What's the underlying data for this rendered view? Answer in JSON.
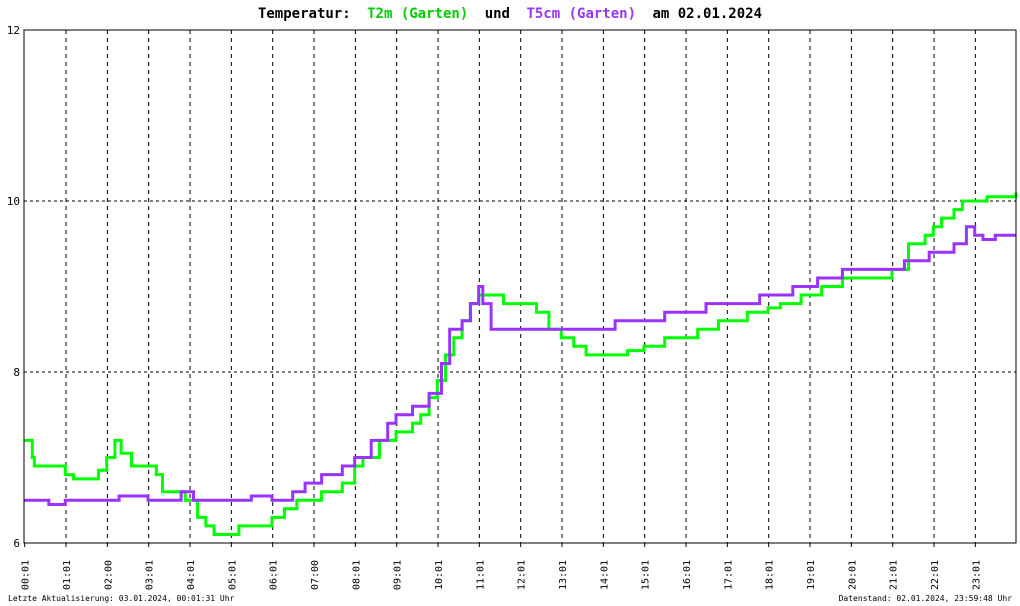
{
  "title": {
    "prefix": "Temperatur:",
    "series1": "T2m (Garten)",
    "und": "und",
    "series2": "T5cm (Garten)",
    "suffix": "am 02.01.2024"
  },
  "footer": {
    "left": "Letzte Aktualisierung: 03.01.2024, 00:01:31 Uhr",
    "right": "Datenstand: 02.01.2024, 23:59:48 Uhr"
  },
  "colors": {
    "t2m": "#00ff00",
    "t5cm": "#9933ff",
    "grid": "#000000",
    "border": "#000000"
  },
  "chart_data": {
    "type": "line",
    "x_unit": "hours",
    "xlim": [
      0,
      24
    ],
    "ylim": [
      6,
      12
    ],
    "grid": true,
    "y_ticks": [
      6,
      8,
      10,
      12
    ],
    "x_ticks": [
      {
        "t": 0.0167,
        "label": "00:01"
      },
      {
        "t": 1.0167,
        "label": "01:01"
      },
      {
        "t": 2.0167,
        "label": "02:00"
      },
      {
        "t": 3.0167,
        "label": "03:01"
      },
      {
        "t": 4.0167,
        "label": "04:01"
      },
      {
        "t": 5.0167,
        "label": "05:01"
      },
      {
        "t": 6.0167,
        "label": "06:01"
      },
      {
        "t": 7.0167,
        "label": "07:00"
      },
      {
        "t": 8.0167,
        "label": "08:01"
      },
      {
        "t": 9.0167,
        "label": "09:01"
      },
      {
        "t": 10.0167,
        "label": "10:01"
      },
      {
        "t": 11.0167,
        "label": "11:01"
      },
      {
        "t": 12.0167,
        "label": "12:01"
      },
      {
        "t": 13.0167,
        "label": "13:01"
      },
      {
        "t": 14.0167,
        "label": "14:01"
      },
      {
        "t": 15.0167,
        "label": "15:01"
      },
      {
        "t": 16.0167,
        "label": "16:01"
      },
      {
        "t": 17.0167,
        "label": "17:01"
      },
      {
        "t": 18.0167,
        "label": "18:01"
      },
      {
        "t": 19.0167,
        "label": "19:01"
      },
      {
        "t": 20.0167,
        "label": "20:01"
      },
      {
        "t": 21.0167,
        "label": "21:01"
      },
      {
        "t": 22.0167,
        "label": "22:01"
      },
      {
        "t": 23.0167,
        "label": "23:01"
      }
    ],
    "series": [
      {
        "name": "T2m (Garten)",
        "points": [
          [
            0.0,
            7.2
          ],
          [
            0.2,
            7.0
          ],
          [
            0.25,
            6.9
          ],
          [
            1.0,
            6.8
          ],
          [
            1.2,
            6.75
          ],
          [
            1.6,
            6.75
          ],
          [
            1.8,
            6.85
          ],
          [
            2.0,
            7.0
          ],
          [
            2.2,
            7.2
          ],
          [
            2.35,
            7.05
          ],
          [
            2.6,
            6.9
          ],
          [
            3.2,
            6.8
          ],
          [
            3.35,
            6.6
          ],
          [
            3.9,
            6.5
          ],
          [
            4.2,
            6.3
          ],
          [
            4.4,
            6.2
          ],
          [
            4.6,
            6.1
          ],
          [
            5.0,
            6.1
          ],
          [
            5.2,
            6.2
          ],
          [
            5.8,
            6.2
          ],
          [
            6.0,
            6.3
          ],
          [
            6.3,
            6.4
          ],
          [
            6.6,
            6.5
          ],
          [
            7.2,
            6.6
          ],
          [
            7.7,
            6.7
          ],
          [
            8.0,
            6.9
          ],
          [
            8.2,
            7.0
          ],
          [
            8.6,
            7.2
          ],
          [
            9.0,
            7.3
          ],
          [
            9.4,
            7.4
          ],
          [
            9.6,
            7.5
          ],
          [
            9.8,
            7.7
          ],
          [
            10.0,
            7.9
          ],
          [
            10.2,
            8.2
          ],
          [
            10.4,
            8.4
          ],
          [
            10.6,
            8.6
          ],
          [
            10.8,
            8.8
          ],
          [
            11.0,
            8.9
          ],
          [
            11.4,
            8.9
          ],
          [
            11.6,
            8.8
          ],
          [
            12.2,
            8.8
          ],
          [
            12.4,
            8.7
          ],
          [
            12.7,
            8.5
          ],
          [
            13.0,
            8.4
          ],
          [
            13.3,
            8.3
          ],
          [
            13.6,
            8.2
          ],
          [
            14.2,
            8.2
          ],
          [
            14.6,
            8.25
          ],
          [
            15.0,
            8.3
          ],
          [
            15.5,
            8.4
          ],
          [
            16.3,
            8.5
          ],
          [
            16.6,
            8.5
          ],
          [
            16.8,
            8.6
          ],
          [
            17.5,
            8.7
          ],
          [
            18.0,
            8.75
          ],
          [
            18.3,
            8.8
          ],
          [
            18.8,
            8.9
          ],
          [
            19.3,
            9.0
          ],
          [
            19.8,
            9.1
          ],
          [
            20.2,
            9.1
          ],
          [
            20.5,
            9.1
          ],
          [
            21.0,
            9.2
          ],
          [
            21.4,
            9.5
          ],
          [
            21.8,
            9.6
          ],
          [
            22.0,
            9.7
          ],
          [
            22.2,
            9.8
          ],
          [
            22.5,
            9.9
          ],
          [
            22.7,
            10.0
          ],
          [
            23.0,
            10.0
          ],
          [
            23.3,
            10.05
          ],
          [
            23.6,
            10.05
          ],
          [
            24.0,
            10.1
          ]
        ]
      },
      {
        "name": "T5cm (Garten)",
        "points": [
          [
            0.0,
            6.5
          ],
          [
            0.4,
            6.5
          ],
          [
            0.6,
            6.45
          ],
          [
            1.0,
            6.5
          ],
          [
            1.5,
            6.5
          ],
          [
            2.0,
            6.5
          ],
          [
            2.3,
            6.55
          ],
          [
            2.8,
            6.55
          ],
          [
            3.0,
            6.5
          ],
          [
            3.5,
            6.5
          ],
          [
            3.8,
            6.6
          ],
          [
            4.1,
            6.5
          ],
          [
            5.0,
            6.5
          ],
          [
            5.5,
            6.55
          ],
          [
            6.0,
            6.5
          ],
          [
            6.5,
            6.6
          ],
          [
            6.8,
            6.7
          ],
          [
            7.2,
            6.8
          ],
          [
            7.7,
            6.9
          ],
          [
            8.0,
            7.0
          ],
          [
            8.4,
            7.2
          ],
          [
            8.8,
            7.4
          ],
          [
            9.0,
            7.5
          ],
          [
            9.4,
            7.6
          ],
          [
            9.8,
            7.75
          ],
          [
            10.1,
            8.1
          ],
          [
            10.3,
            8.5
          ],
          [
            10.6,
            8.6
          ],
          [
            10.8,
            8.8
          ],
          [
            11.0,
            9.0
          ],
          [
            11.1,
            8.8
          ],
          [
            11.3,
            8.5
          ],
          [
            11.6,
            8.5
          ],
          [
            12.0,
            8.5
          ],
          [
            13.0,
            8.5
          ],
          [
            14.0,
            8.5
          ],
          [
            14.3,
            8.6
          ],
          [
            15.0,
            8.6
          ],
          [
            15.5,
            8.7
          ],
          [
            16.3,
            8.7
          ],
          [
            16.5,
            8.8
          ],
          [
            17.3,
            8.8
          ],
          [
            17.8,
            8.9
          ],
          [
            18.6,
            9.0
          ],
          [
            19.2,
            9.1
          ],
          [
            19.8,
            9.2
          ],
          [
            20.5,
            9.2
          ],
          [
            21.0,
            9.2
          ],
          [
            21.3,
            9.3
          ],
          [
            21.9,
            9.4
          ],
          [
            22.5,
            9.5
          ],
          [
            22.8,
            9.7
          ],
          [
            23.0,
            9.6
          ],
          [
            23.2,
            9.55
          ],
          [
            23.5,
            9.6
          ],
          [
            24.0,
            9.6
          ]
        ]
      }
    ]
  }
}
